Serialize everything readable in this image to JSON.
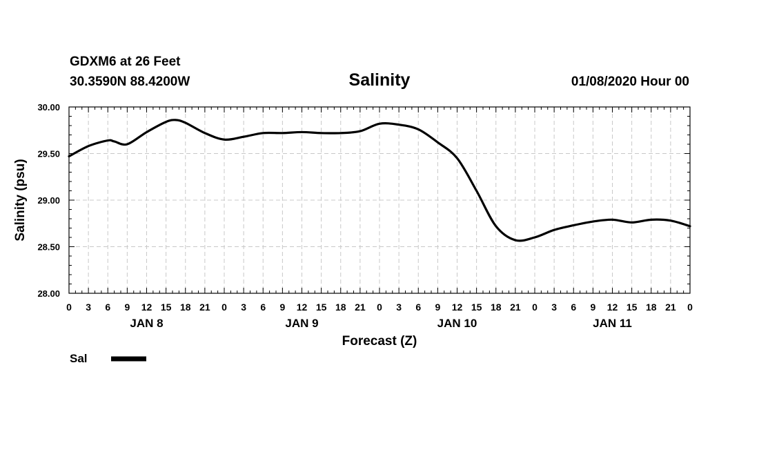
{
  "header": {
    "station": "GDXM6 at 26 Feet",
    "coords": "30.3590N 88.4200W",
    "title": "Salinity",
    "run": "01/08/2020 Hour 00"
  },
  "chart_data": {
    "type": "line",
    "title": "Salinity",
    "xlabel": "Forecast (Z)",
    "ylabel": "Salinity (psu)",
    "ylim": [
      28.0,
      30.0
    ],
    "xlim_hours": [
      0,
      96
    ],
    "yticks": [
      "28.00",
      "28.50",
      "29.00",
      "29.50",
      "30.00"
    ],
    "x_tick_labels": [
      "0",
      "3",
      "6",
      "9",
      "12",
      "15",
      "18",
      "21",
      "0",
      "3",
      "6",
      "9",
      "12",
      "15",
      "18",
      "21",
      "0",
      "3",
      "6",
      "9",
      "12",
      "15",
      "18",
      "21",
      "0",
      "3",
      "6",
      "9",
      "12",
      "15",
      "18",
      "21",
      "0"
    ],
    "day_labels": [
      {
        "label": "JAN 8",
        "hour": 12
      },
      {
        "label": "JAN 9",
        "hour": 36
      },
      {
        "label": "JAN 10",
        "hour": 60
      },
      {
        "label": "JAN 11",
        "hour": 84
      }
    ],
    "grid": true,
    "legend": "bottom-left",
    "series": [
      {
        "name": "Sal",
        "x": [
          0,
          3,
          6,
          7,
          9,
          12,
          15,
          16.5,
          18,
          21,
          24,
          27,
          30,
          33,
          36,
          39,
          42,
          45,
          48,
          51,
          54,
          57,
          60,
          63,
          66,
          69,
          72,
          75,
          78,
          81,
          84,
          87,
          90,
          93,
          96
        ],
        "values": [
          29.47,
          29.58,
          29.64,
          29.63,
          29.6,
          29.73,
          29.84,
          29.86,
          29.83,
          29.72,
          29.65,
          29.68,
          29.72,
          29.72,
          29.73,
          29.72,
          29.72,
          29.74,
          29.82,
          29.81,
          29.76,
          29.62,
          29.45,
          29.1,
          28.72,
          28.57,
          28.6,
          28.68,
          28.73,
          28.77,
          28.79,
          28.76,
          28.79,
          28.78,
          28.72
        ]
      }
    ]
  }
}
